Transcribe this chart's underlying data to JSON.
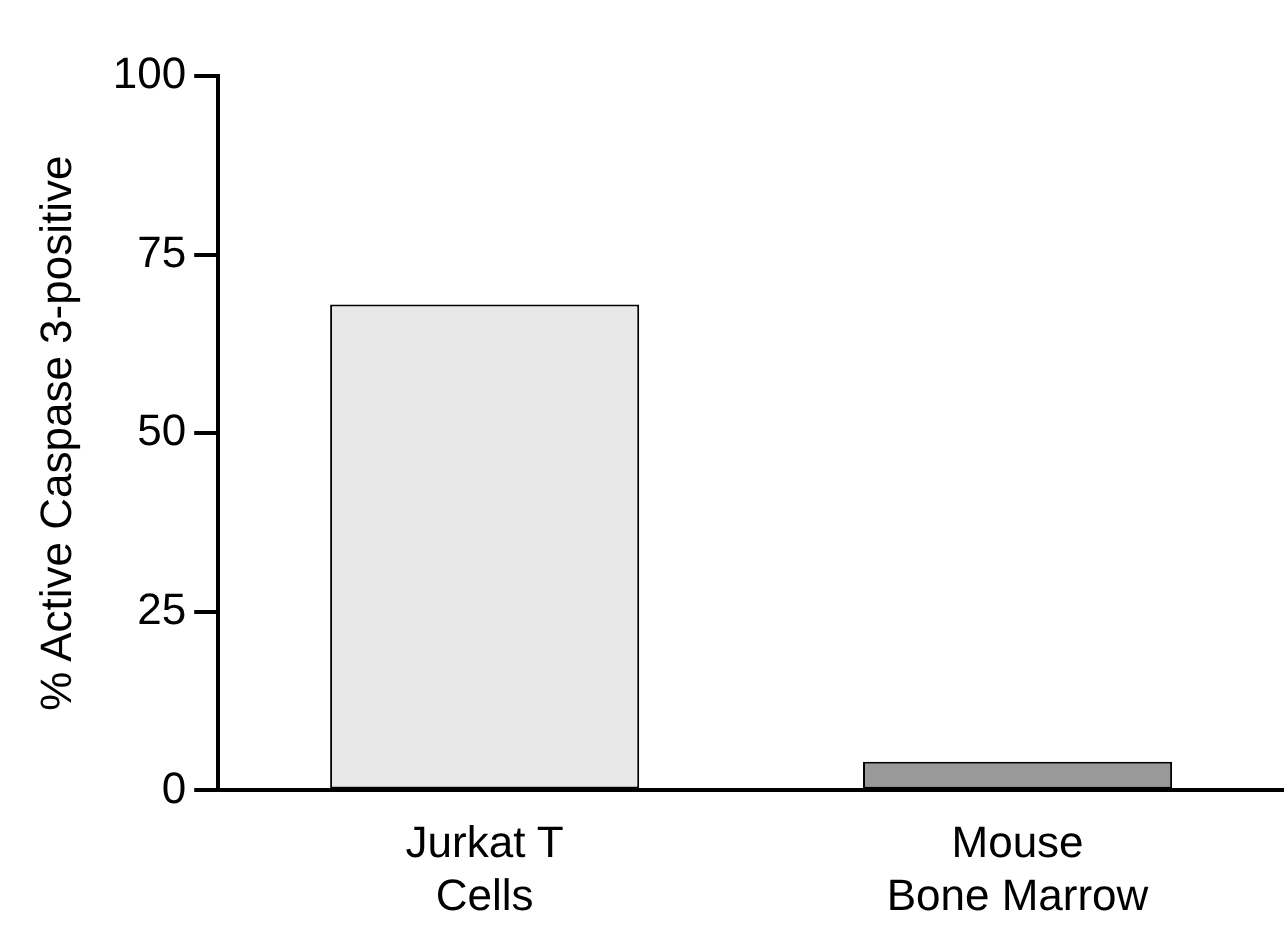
{
  "chart_data": {
    "type": "bar",
    "ylabel": "% Active Caspase 3-positive",
    "categories": [
      "Jurkat T\nCells",
      "Mouse\nBone Marrow"
    ],
    "values": [
      68,
      4
    ],
    "colors": [
      "#e8e8e8",
      "#999999"
    ],
    "ylim": [
      0,
      100
    ],
    "yticks": [
      0,
      25,
      50,
      75,
      100
    ],
    "grid": false,
    "legend": false
  }
}
